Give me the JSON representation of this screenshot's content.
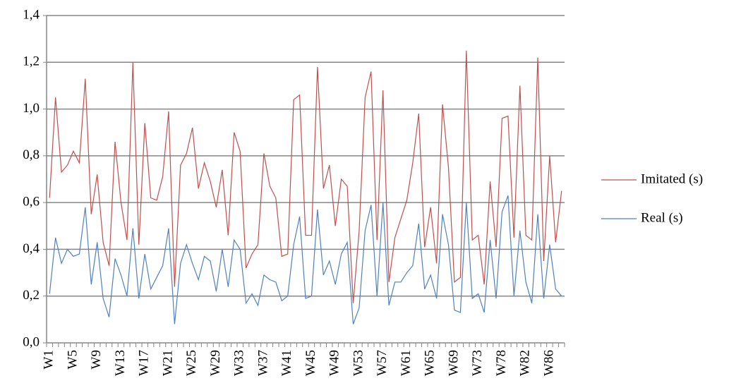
{
  "chart_data": {
    "type": "line",
    "categories": [
      "W1",
      null,
      null,
      null,
      "W5",
      null,
      null,
      null,
      "W9",
      null,
      null,
      null,
      "W13",
      null,
      null,
      null,
      "W17",
      null,
      null,
      null,
      "W21",
      null,
      null,
      null,
      "W25",
      null,
      null,
      null,
      "W29",
      null,
      null,
      null,
      "W33",
      null,
      null,
      null,
      "W37",
      null,
      null,
      null,
      "W41",
      null,
      null,
      null,
      "W45",
      null,
      null,
      null,
      "W49",
      null,
      null,
      null,
      "W53",
      null,
      null,
      null,
      "W57",
      null,
      null,
      null,
      "W61",
      null,
      null,
      null,
      "W65",
      null,
      null,
      null,
      "W69",
      null,
      null,
      null,
      "W73",
      null,
      null,
      null,
      "W78",
      null,
      null,
      null,
      "W82",
      null,
      null,
      null,
      "W86",
      null,
      null
    ],
    "series": [
      {
        "name": "Imitated (s)",
        "color": "#c0504d",
        "values": [
          0.62,
          1.05,
          0.73,
          0.76,
          0.82,
          0.77,
          1.13,
          0.55,
          0.72,
          0.43,
          0.33,
          0.86,
          0.6,
          0.44,
          1.2,
          0.42,
          0.94,
          0.62,
          0.61,
          0.71,
          0.99,
          0.24,
          0.76,
          0.81,
          0.92,
          0.66,
          0.77,
          0.69,
          0.58,
          0.74,
          0.46,
          0.9,
          0.82,
          0.32,
          0.38,
          0.42,
          0.81,
          0.67,
          0.62,
          0.37,
          0.38,
          1.04,
          1.06,
          0.46,
          0.46,
          1.18,
          0.66,
          0.76,
          0.5,
          0.7,
          0.67,
          0.17,
          0.48,
          1.05,
          1.16,
          0.44,
          1.08,
          0.26,
          0.45,
          0.53,
          0.61,
          0.77,
          0.98,
          0.41,
          0.58,
          0.34,
          1.02,
          0.75,
          0.26,
          0.28,
          1.25,
          0.44,
          0.46,
          0.25,
          0.69,
          0.41,
          0.96,
          0.97,
          0.45,
          1.1,
          0.46,
          0.44,
          1.22,
          0.35,
          0.8,
          0.43,
          0.65
        ]
      },
      {
        "name": "Real (s)",
        "color": "#4f81bd",
        "values": [
          0.21,
          0.45,
          0.34,
          0.4,
          0.37,
          0.38,
          0.58,
          0.25,
          0.43,
          0.19,
          0.11,
          0.36,
          0.29,
          0.2,
          0.49,
          0.19,
          0.38,
          0.23,
          0.28,
          0.33,
          0.49,
          0.08,
          0.34,
          0.42,
          0.34,
          0.27,
          0.37,
          0.35,
          0.22,
          0.4,
          0.24,
          0.44,
          0.4,
          0.17,
          0.21,
          0.16,
          0.29,
          0.27,
          0.26,
          0.18,
          0.2,
          0.42,
          0.54,
          0.19,
          0.2,
          0.57,
          0.29,
          0.35,
          0.25,
          0.38,
          0.43,
          0.08,
          0.15,
          0.48,
          0.59,
          0.2,
          0.6,
          0.16,
          0.26,
          0.26,
          0.3,
          0.33,
          0.51,
          0.23,
          0.29,
          0.19,
          0.55,
          0.42,
          0.14,
          0.13,
          0.6,
          0.19,
          0.21,
          0.13,
          0.44,
          0.19,
          0.56,
          0.63,
          0.2,
          0.48,
          0.26,
          0.17,
          0.55,
          0.19,
          0.42,
          0.23,
          0.2
        ]
      }
    ],
    "ylim": [
      0,
      1.4
    ],
    "yticks": [
      {
        "value": 0,
        "label": "0,0"
      },
      {
        "value": 0.2,
        "label": "0,2"
      },
      {
        "value": 0.4,
        "label": "0,4"
      },
      {
        "value": 0.6,
        "label": "0,6"
      },
      {
        "value": 0.8,
        "label": "0,8"
      },
      {
        "value": 1.0,
        "label": "1,0"
      },
      {
        "value": 1.2,
        "label": "1,2"
      },
      {
        "value": 1.4,
        "label": "1,4"
      }
    ],
    "grid": true,
    "legend": "right"
  }
}
